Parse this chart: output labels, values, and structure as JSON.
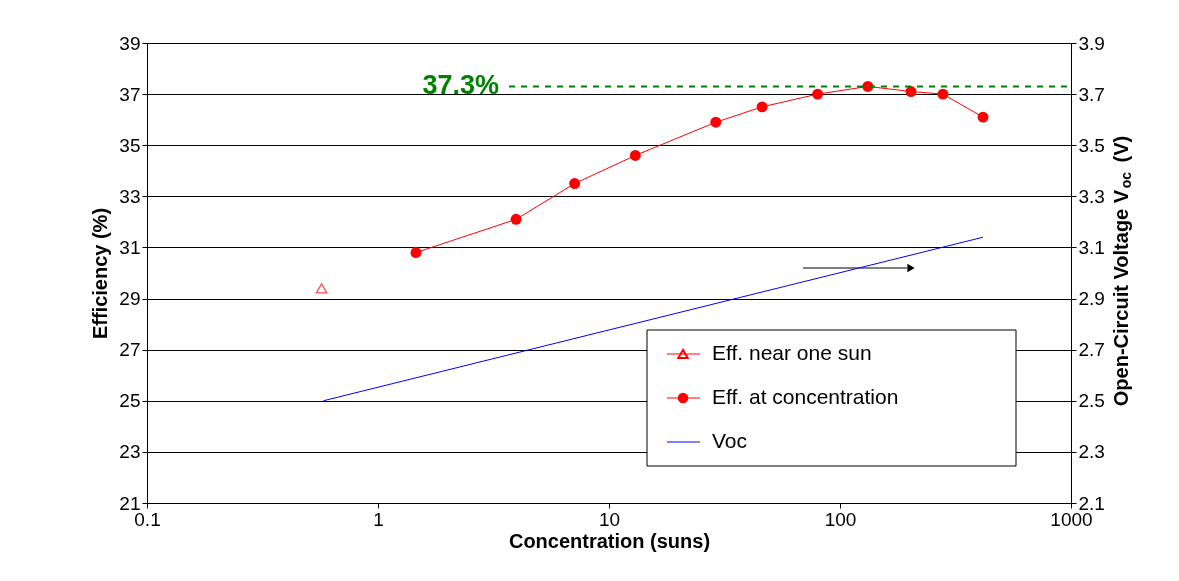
{
  "chart_data": {
    "type": "line",
    "xlabel": "Concentration  (suns)",
    "ylabel": "Efficiency (%)",
    "y2label": "Open-Circuit Voltage V$_{oc}$ (V)",
    "log": "x",
    "xlim": [
      0.1,
      1000
    ],
    "xticks": [
      0.1,
      1,
      10,
      100,
      1000
    ],
    "ylim": [
      21,
      39
    ],
    "yticks": [
      21,
      23,
      25,
      27,
      29,
      31,
      33,
      35,
      37,
      39
    ],
    "y2lim": [
      2.1,
      3.9
    ],
    "y2ticks": [
      {
        "value": 2.1,
        "label": "2.1"
      },
      {
        "value": 2.3,
        "label": "2.3"
      },
      {
        "value": 2.5,
        "label": "2.5"
      },
      {
        "value": 2.7,
        "label": "2.7"
      },
      {
        "value": 2.9,
        "label": "2.9"
      },
      {
        "value": 3.1,
        "label": "3.1"
      },
      {
        "value": 3.3,
        "label": "3.3"
      },
      {
        "value": 3.5,
        "label": "3.5"
      },
      {
        "value": 3.7,
        "label": "3.7"
      },
      {
        "value": 3.9,
        "label": "3.9"
      }
    ],
    "grid": "y",
    "legend": "bottom right",
    "series": [
      {
        "name": "Eff. near one sun",
        "type": "scatter",
        "marker": "triangle",
        "color": "#ff0000",
        "x": [
          0.57
        ],
        "values": [
          29.4
        ]
      },
      {
        "name": "Eff. at concentration",
        "marker": "circle",
        "color": "#ff0000",
        "x": [
          1.46,
          3.96,
          7.1,
          13,
          29,
          46,
          80,
          132,
          203,
          279,
          416
        ],
        "values": [
          30.8,
          32.1,
          33.5,
          34.6,
          35.9,
          36.5,
          37.0,
          37.3,
          37.1,
          37.0,
          36.1
        ]
      },
      {
        "name": "Voc",
        "marker": "none",
        "axis": "y2",
        "color": "#0000ff",
        "x": [
          0.58,
          416
        ],
        "values": [
          2.5,
          3.14
        ]
      }
    ],
    "ref_lines": [
      {
        "axis": "y",
        "value": 37.3,
        "label": "37.3%",
        "color": "#008000",
        "line_style": "dashed"
      }
    ]
  }
}
